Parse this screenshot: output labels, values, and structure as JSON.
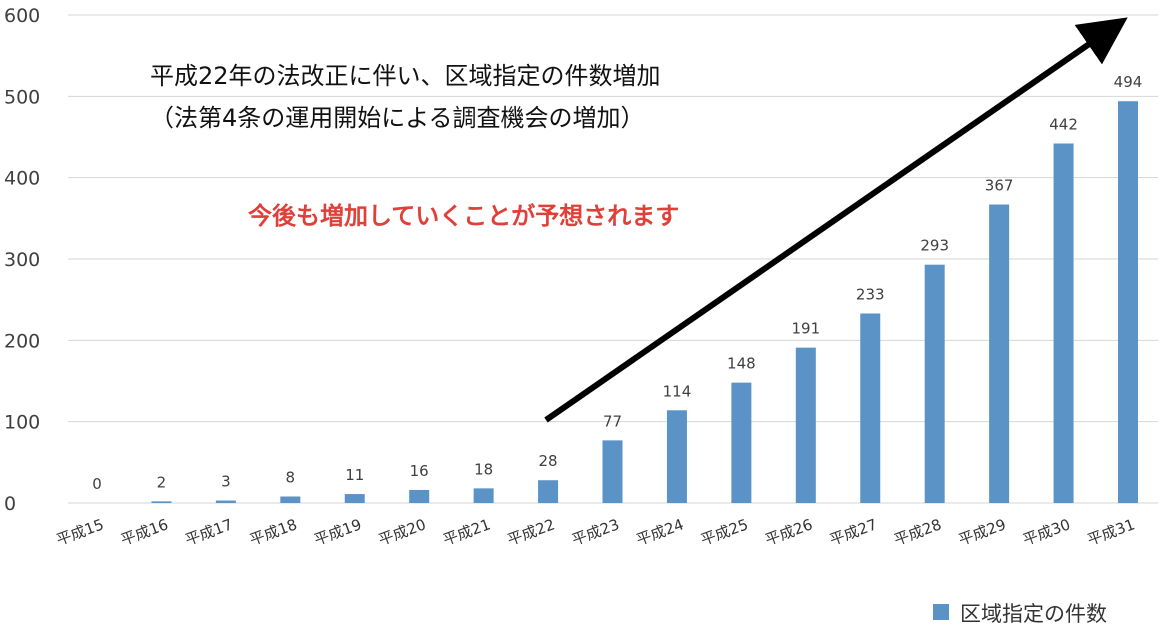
{
  "chart_data": {
    "type": "bar",
    "categories": [
      "平成15",
      "平成16",
      "平成17",
      "平成18",
      "平成19",
      "平成20",
      "平成21",
      "平成22",
      "平成23",
      "平成24",
      "平成25",
      "平成26",
      "平成27",
      "平成28",
      "平成29",
      "平成30",
      "平成31"
    ],
    "series": [
      {
        "name": "区域指定の件数",
        "values": [
          0,
          2,
          3,
          8,
          11,
          16,
          18,
          28,
          77,
          114,
          148,
          191,
          233,
          293,
          367,
          442,
          494
        ]
      }
    ],
    "ylim": [
      0,
      600
    ],
    "yticks": [
      "0",
      "100",
      "200",
      "300",
      "400",
      "500",
      "600"
    ],
    "grid": true,
    "legend_position": "bottom-right",
    "bar_color": "#5b93c7",
    "annotations": {
      "line1": "平成22年の法改正に伴い、区域指定の件数増加",
      "line2": "（法第4条の運用開始による調査機会の増加）",
      "red_note": "今後も増加していくことが予想されます",
      "red_color": "#e0403a",
      "arrow_color": "#000000"
    }
  }
}
